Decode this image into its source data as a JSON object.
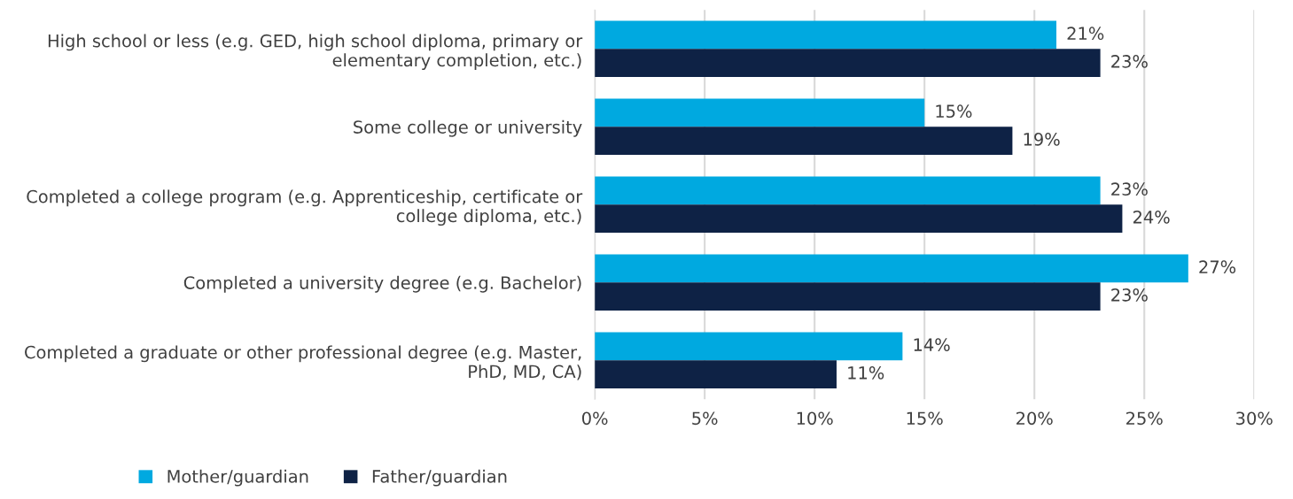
{
  "chart_data": {
    "type": "bar",
    "orientation": "horizontal",
    "categories": [
      "High school or less (e.g. GED, high school diploma, primary or\nelementary completion, etc.)",
      "Some college or university",
      "Completed a college program (e.g. Apprenticeship, certificate or\ncollege diploma, etc.)",
      "Completed a university degree (e.g. Bachelor)",
      "Completed a graduate or other professional degree (e.g. Master,\nPhD, MD, CA)"
    ],
    "series": [
      {
        "name": "Mother/guardian",
        "color": "#00a9e0",
        "values": [
          21,
          15,
          23,
          27,
          14
        ]
      },
      {
        "name": "Father/guardian",
        "color": "#0e2245",
        "values": [
          23,
          19,
          24,
          23,
          11
        ]
      }
    ],
    "value_labels": [
      [
        "21%",
        "15%",
        "23%",
        "27%",
        "14%"
      ],
      [
        "23%",
        "19%",
        "24%",
        "23%",
        "11%"
      ]
    ],
    "xlim": [
      0,
      30
    ],
    "xticks": [
      {
        "value": 0,
        "label": "0%"
      },
      {
        "value": 5,
        "label": "5%"
      },
      {
        "value": 10,
        "label": "10%"
      },
      {
        "value": 15,
        "label": "15%"
      },
      {
        "value": 20,
        "label": "20%"
      },
      {
        "value": 25,
        "label": "25%"
      },
      {
        "value": 30,
        "label": "30%"
      }
    ],
    "grid": "x",
    "legend": "bottom"
  }
}
